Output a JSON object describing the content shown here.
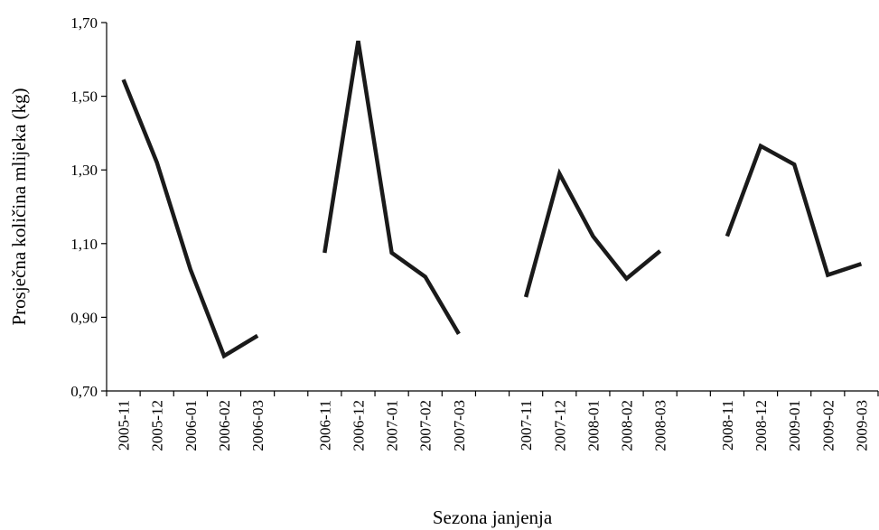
{
  "chart_data": {
    "type": "line",
    "title": "",
    "xlabel": "Sezona janjenja",
    "ylabel": "Prosječna količina mlijeka (kg)",
    "ylim": [
      0.7,
      1.7
    ],
    "yticks": [
      "0,70",
      "0,90",
      "1,10",
      "1,30",
      "1,50",
      "1,70"
    ],
    "grid": false,
    "legend": "none",
    "line_color": "#1a1a1a",
    "categories": [
      "2005-11",
      "2005-12",
      "2006-01",
      "2006-02",
      "2006-03",
      "",
      "2006-11",
      "2006-12",
      "2007-01",
      "2007-02",
      "2007-03",
      "",
      "2007-11",
      "2007-12",
      "2008-01",
      "2008-02",
      "2008-03",
      "",
      "2008-11",
      "2008-12",
      "2009-01",
      "2009-02",
      "2009-03"
    ],
    "values": [
      1.545,
      1.32,
      1.03,
      0.795,
      0.85,
      null,
      1.075,
      1.65,
      1.075,
      1.01,
      0.855,
      null,
      0.955,
      1.29,
      1.12,
      1.005,
      1.08,
      null,
      1.12,
      1.365,
      1.315,
      1.015,
      1.045
    ]
  }
}
